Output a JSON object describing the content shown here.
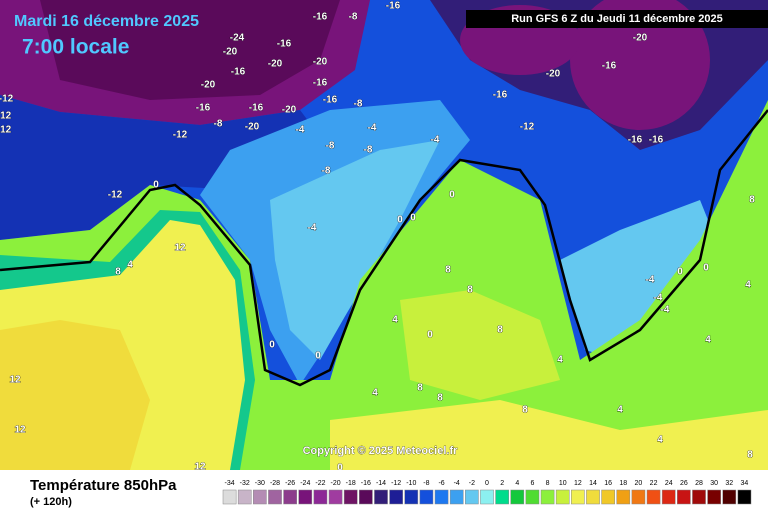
{
  "header": {
    "date": "Mardi 16 décembre 2025",
    "time": "7:00 locale",
    "run": "Run GFS 6 Z du Jeudi 11 décembre 2025"
  },
  "copyright": "Copyright © 2025 Meteociel.fr",
  "footer": {
    "title": "Température 850hPa",
    "lead": "(+ 120h)"
  },
  "legend": {
    "ticks": [
      -34,
      -32,
      -30,
      -28,
      -26,
      -24,
      -22,
      -20,
      -18,
      -16,
      -14,
      -12,
      -10,
      -8,
      -6,
      -4,
      -2,
      0,
      2,
      4,
      6,
      8,
      10,
      12,
      14,
      16,
      18,
      20,
      22,
      24,
      26,
      28,
      30,
      32,
      34
    ],
    "colors": [
      "#dcdcdc",
      "#c8b4c8",
      "#b48cb4",
      "#a064a0",
      "#8c3c8c",
      "#78147a",
      "#8c2896",
      "#a03ca0",
      "#6e1464",
      "#5a0a5a",
      "#321e78",
      "#1e1e96",
      "#1432b4",
      "#1450dc",
      "#1e78f0",
      "#3ca0f0",
      "#64c8f0",
      "#8cf0f0",
      "#00dc8c",
      "#14c83c",
      "#50dc32",
      "#8cf03c",
      "#c8f03c",
      "#f0f050",
      "#f0dc3c",
      "#f0c828",
      "#f0a014",
      "#f07814",
      "#f05014",
      "#dc2814",
      "#c81414",
      "#a00a0a",
      "#780000",
      "#500000",
      "#000000"
    ]
  },
  "contour_labels": [
    -12,
    -12,
    -12,
    -12,
    -12,
    -20,
    -16,
    -24,
    -20,
    -16,
    -20,
    -20,
    -16,
    -16,
    -16,
    -20,
    -8,
    -20,
    -4,
    -16,
    -8,
    -4,
    -8,
    -8,
    -8,
    -4,
    -4,
    -16,
    -8,
    -16,
    -16,
    -12,
    -20,
    -16,
    -20,
    -16,
    -16,
    0,
    4,
    12,
    8,
    0,
    0,
    0,
    0,
    0,
    8,
    8,
    4,
    0,
    8,
    4,
    -4,
    -4,
    -4,
    0,
    0,
    8,
    4,
    4,
    12,
    12,
    12,
    0,
    4,
    4,
    8,
    8,
    8,
    4,
    8
  ]
}
